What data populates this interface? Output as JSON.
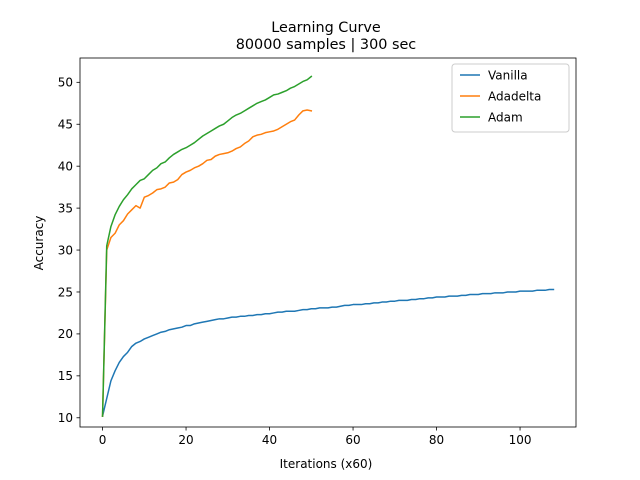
{
  "chart_data": {
    "type": "line",
    "title": "Learning Curve",
    "subtitle": "80000 samples | 300 sec",
    "xlabel": "Iterations (x60)",
    "ylabel": "Accuracy",
    "xlim": [
      -5.4,
      113.4
    ],
    "ylim": [
      8.9,
      52.9
    ],
    "xticks": [
      0,
      20,
      40,
      60,
      80,
      100
    ],
    "yticks": [
      10,
      15,
      20,
      25,
      30,
      35,
      40,
      45,
      50
    ],
    "grid": false,
    "legend_position": "top-right",
    "series": [
      {
        "name": "Vanilla",
        "color": "#1f77b4",
        "x": [
          0,
          1,
          2,
          3,
          4,
          5,
          6,
          7,
          8,
          9,
          10,
          11,
          12,
          13,
          14,
          15,
          16,
          17,
          18,
          19,
          20,
          21,
          22,
          23,
          24,
          25,
          26,
          27,
          28,
          29,
          30,
          31,
          32,
          33,
          34,
          35,
          36,
          37,
          38,
          39,
          40,
          41,
          42,
          43,
          44,
          45,
          46,
          47,
          48,
          49,
          50,
          51,
          52,
          53,
          54,
          55,
          56,
          57,
          58,
          59,
          60,
          61,
          62,
          63,
          64,
          65,
          66,
          67,
          68,
          69,
          70,
          71,
          72,
          73,
          74,
          75,
          76,
          77,
          78,
          79,
          80,
          81,
          82,
          83,
          84,
          85,
          86,
          87,
          88,
          89,
          90,
          91,
          92,
          93,
          94,
          95,
          96,
          97,
          98,
          99,
          100,
          101,
          102,
          103,
          104,
          105,
          106,
          107,
          108
        ],
        "y": [
          10.2,
          12.3,
          14.4,
          15.6,
          16.6,
          17.3,
          17.8,
          18.5,
          18.9,
          19.1,
          19.4,
          19.6,
          19.8,
          20.0,
          20.2,
          20.3,
          20.5,
          20.6,
          20.7,
          20.8,
          21.0,
          21.0,
          21.2,
          21.3,
          21.4,
          21.5,
          21.6,
          21.7,
          21.8,
          21.8,
          21.9,
          22.0,
          22.0,
          22.1,
          22.1,
          22.2,
          22.2,
          22.3,
          22.3,
          22.4,
          22.4,
          22.5,
          22.6,
          22.6,
          22.7,
          22.7,
          22.7,
          22.8,
          22.9,
          22.9,
          23.0,
          23.0,
          23.1,
          23.1,
          23.1,
          23.2,
          23.2,
          23.3,
          23.4,
          23.4,
          23.5,
          23.5,
          23.5,
          23.6,
          23.6,
          23.7,
          23.7,
          23.8,
          23.8,
          23.9,
          23.9,
          24.0,
          24.0,
          24.0,
          24.1,
          24.1,
          24.2,
          24.2,
          24.3,
          24.3,
          24.4,
          24.4,
          24.4,
          24.5,
          24.5,
          24.5,
          24.6,
          24.6,
          24.7,
          24.7,
          24.7,
          24.8,
          24.8,
          24.8,
          24.9,
          24.9,
          24.9,
          25.0,
          25.0,
          25.0,
          25.1,
          25.1,
          25.1,
          25.1,
          25.2,
          25.2,
          25.2,
          25.3,
          25.3
        ]
      },
      {
        "name": "Adadelta",
        "color": "#ff7f0e",
        "x": [
          0,
          1,
          2,
          3,
          4,
          5,
          6,
          7,
          8,
          9,
          10,
          11,
          12,
          13,
          14,
          15,
          16,
          17,
          18,
          19,
          20,
          21,
          22,
          23,
          24,
          25,
          26,
          27,
          28,
          29,
          30,
          31,
          32,
          33,
          34,
          35,
          36,
          37,
          38,
          39,
          40,
          41,
          42,
          43,
          44,
          45,
          46,
          47,
          48,
          49,
          50
        ],
        "y": [
          10.2,
          30.0,
          31.5,
          32.0,
          33.0,
          33.5,
          34.3,
          34.8,
          35.3,
          35.0,
          36.3,
          36.5,
          36.8,
          37.2,
          37.3,
          37.5,
          38.0,
          38.1,
          38.4,
          39.0,
          39.3,
          39.5,
          39.8,
          40.0,
          40.3,
          40.7,
          40.8,
          41.2,
          41.4,
          41.5,
          41.6,
          41.8,
          42.1,
          42.3,
          42.7,
          43.0,
          43.5,
          43.7,
          43.8,
          44.0,
          44.1,
          44.2,
          44.4,
          44.7,
          45.0,
          45.3,
          45.5,
          46.1,
          46.6,
          46.7,
          46.6
        ]
      },
      {
        "name": "Adam",
        "color": "#2ca02c",
        "x": [
          0,
          1,
          2,
          3,
          4,
          5,
          6,
          7,
          8,
          9,
          10,
          11,
          12,
          13,
          14,
          15,
          16,
          17,
          18,
          19,
          20,
          21,
          22,
          23,
          24,
          25,
          26,
          27,
          28,
          29,
          30,
          31,
          32,
          33,
          34,
          35,
          36,
          37,
          38,
          39,
          40,
          41,
          42,
          43,
          44,
          45,
          46,
          47,
          48,
          49,
          50
        ],
        "y": [
          10.2,
          30.5,
          32.8,
          34.2,
          35.2,
          36.0,
          36.6,
          37.3,
          37.8,
          38.3,
          38.5,
          39.0,
          39.5,
          39.8,
          40.3,
          40.5,
          41.0,
          41.4,
          41.7,
          42.0,
          42.2,
          42.5,
          42.8,
          43.2,
          43.6,
          43.9,
          44.2,
          44.5,
          44.8,
          45.0,
          45.4,
          45.8,
          46.1,
          46.3,
          46.6,
          46.9,
          47.2,
          47.5,
          47.7,
          47.9,
          48.2,
          48.5,
          48.6,
          48.8,
          49.0,
          49.3,
          49.5,
          49.8,
          50.1,
          50.3,
          50.7
        ]
      }
    ]
  }
}
